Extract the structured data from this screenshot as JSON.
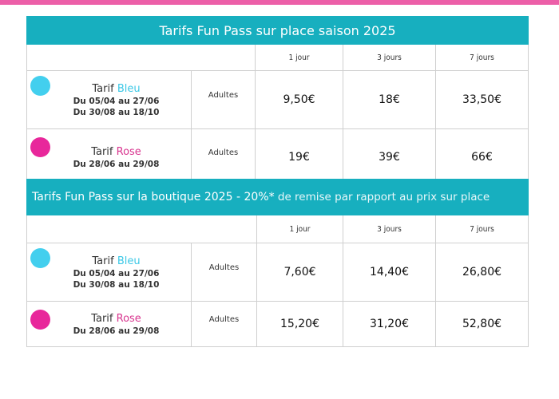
{
  "colors": {
    "accent_pink": "#ec5fa8",
    "header_teal": "#17afbf",
    "bleu": "#43cfee",
    "rose": "#e8279b"
  },
  "table1": {
    "title": "Tarifs Fun Pass sur place saison 2025",
    "columns": [
      "1 jour",
      "3 jours",
      "7 jours"
    ],
    "rows": [
      {
        "label": "Tarif",
        "season": "Bleu",
        "dates": [
          "Du 05/04 au 27/06",
          "Du 30/08 au 18/10"
        ],
        "audience": "Adultes",
        "prices": [
          "9,50€",
          "18€",
          "33,50€"
        ],
        "dot_icon": "blue-dot-icon"
      },
      {
        "label": "Tarif",
        "season": "Rose",
        "dates": [
          "Du 28/06 au 29/08"
        ],
        "audience": "Adultes",
        "prices": [
          "19€",
          "39€",
          "66€"
        ],
        "dot_icon": "pink-dot-icon"
      }
    ]
  },
  "table2": {
    "title": "Tarifs Fun Pass sur la boutique 2025",
    "discount": " - 20%*",
    "subtitle": " de remise par rapport au prix sur place",
    "columns": [
      "1 jour",
      "3 jours",
      "7 jours"
    ],
    "rows": [
      {
        "label": "Tarif",
        "season": "Bleu",
        "dates": [
          "Du 05/04 au 27/06",
          "Du 30/08 au 18/10"
        ],
        "audience": "Adultes",
        "prices": [
          "7,60€",
          "14,40€",
          "26,80€"
        ],
        "dot_icon": "blue-dot-icon"
      },
      {
        "label": "Tarif",
        "season": "Rose",
        "dates": [
          "Du 28/06 au 29/08"
        ],
        "audience": "Adultes",
        "prices": [
          "15,20€",
          "31,20€",
          "52,80€"
        ],
        "dot_icon": "pink-dot-icon"
      }
    ]
  }
}
